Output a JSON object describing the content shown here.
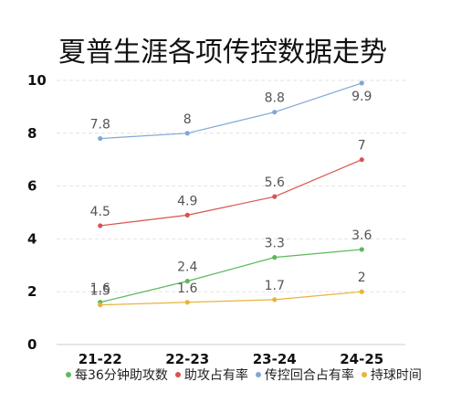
{
  "chart_data": {
    "type": "line",
    "title": "夏普生涯各项传控数据走势",
    "categories": [
      "21-22",
      "22-23",
      "23-24",
      "24-25"
    ],
    "ylim": [
      0,
      10
    ],
    "yticks": [
      "0",
      "2",
      "4",
      "6",
      "8",
      "10"
    ],
    "grid": true,
    "legend_position": "bottom",
    "series": [
      {
        "name": "每36分钟助攻数",
        "color": "#5cb85c",
        "values": [
          1.6,
          2.4,
          3.3,
          3.6
        ]
      },
      {
        "name": "助攻占有率",
        "color": "#d9534f",
        "values": [
          4.5,
          4.9,
          5.6,
          7
        ]
      },
      {
        "name": "传控回合占有率",
        "color": "#7fa7d4",
        "values": [
          7.8,
          8,
          8.8,
          9.9
        ]
      },
      {
        "name": "持球时间",
        "color": "#e8b43c",
        "values": [
          1.5,
          1.6,
          1.7,
          2
        ]
      }
    ]
  }
}
